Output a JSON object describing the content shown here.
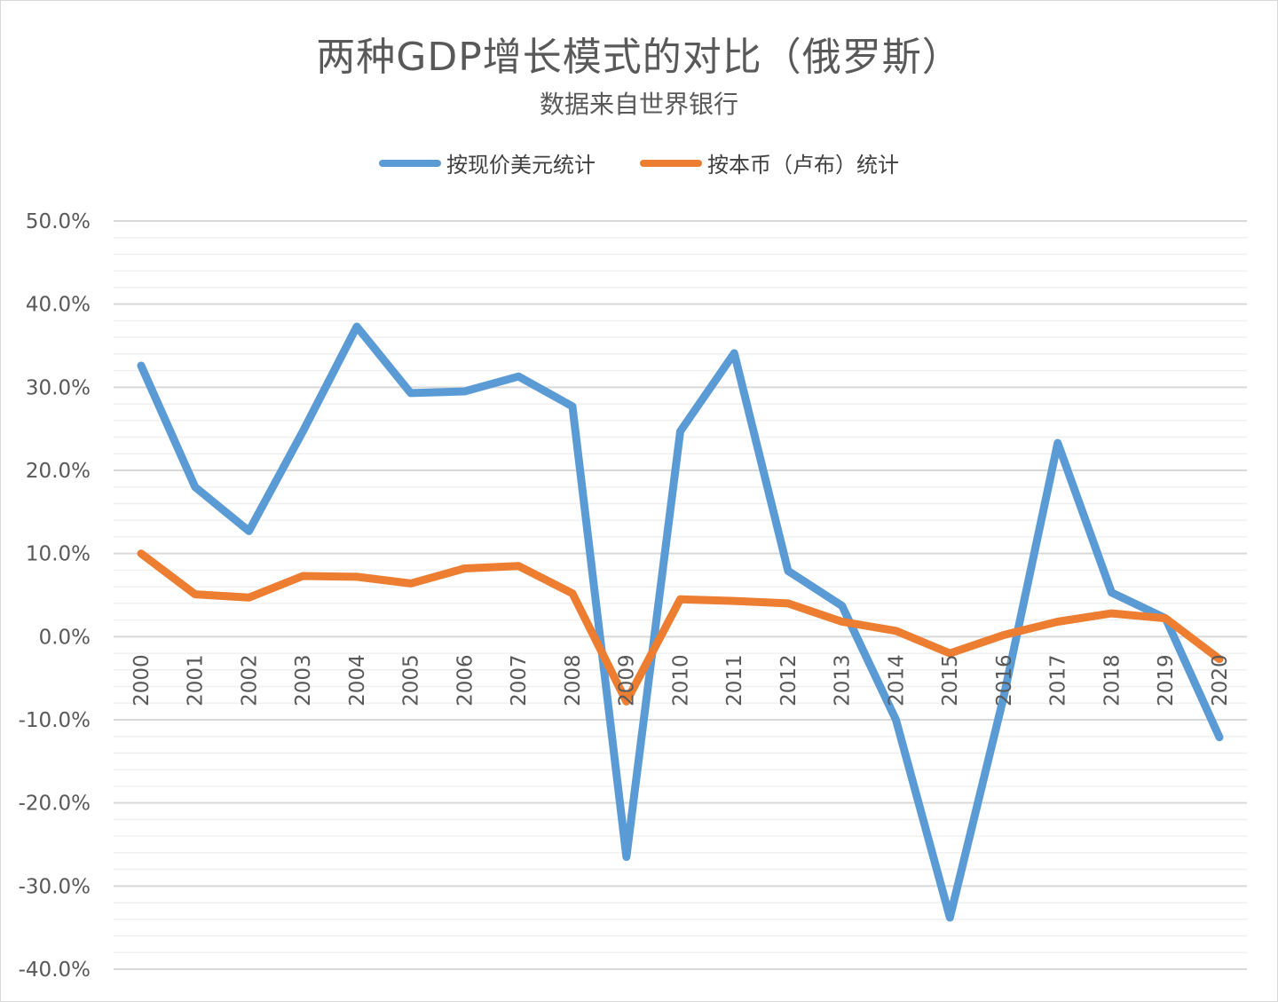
{
  "chart_data": {
    "type": "line",
    "title": "两种GDP增长模式的对比（俄罗斯）",
    "subtitle": "数据来自世界银行",
    "categories": [
      "2000",
      "2001",
      "2002",
      "2003",
      "2004",
      "2005",
      "2006",
      "2007",
      "2008",
      "2009",
      "2010",
      "2011",
      "2012",
      "2013",
      "2014",
      "2015",
      "2016",
      "2017",
      "2018",
      "2019",
      "2020"
    ],
    "ylim": [
      -40,
      50
    ],
    "y_ticks": [
      "50.0%",
      "40.0%",
      "30.0%",
      "20.0%",
      "10.0%",
      "0.0%",
      "-10.0%",
      "-20.0%",
      "-30.0%",
      "-40.0%"
    ],
    "y_tick_values": [
      50,
      40,
      30,
      20,
      10,
      0,
      -10,
      -20,
      -30,
      -40
    ],
    "legend_position": "top",
    "grid": true,
    "series": [
      {
        "name": "按现价美元统计",
        "color": "#5b9bd5",
        "values": [
          32.6,
          18.0,
          12.7,
          24.7,
          37.3,
          29.3,
          29.5,
          31.3,
          27.7,
          -26.5,
          24.7,
          34.1,
          7.9,
          3.7,
          -10.0,
          -33.8,
          -7.2,
          23.3,
          5.3,
          2.2,
          -12.1
        ]
      },
      {
        "name": "按本币（卢布）统计",
        "color": "#ed7d31",
        "values": [
          10.0,
          5.1,
          4.7,
          7.3,
          7.2,
          6.4,
          8.2,
          8.5,
          5.2,
          -7.8,
          4.5,
          4.3,
          4.0,
          1.8,
          0.7,
          -2.0,
          0.2,
          1.8,
          2.8,
          2.2,
          -2.7
        ]
      }
    ]
  }
}
